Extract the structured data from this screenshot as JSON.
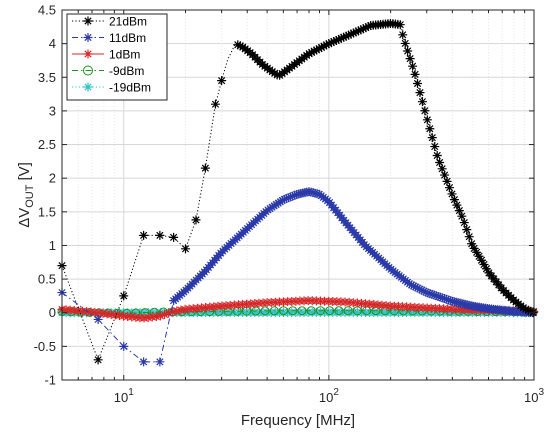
{
  "chart_data": {
    "type": "line",
    "title": "",
    "xlabel": "Frequency [MHz]",
    "ylabel_main": "ΔV",
    "ylabel_sub": "OUT",
    "ylabel_unit": "[V]",
    "xscale": "log",
    "xlim": [
      5,
      1000
    ],
    "ylim": [
      -1,
      4.5
    ],
    "grid": true,
    "legend_position": "top-left",
    "x_ticks": [
      {
        "value": 10,
        "base": "10",
        "exp": "1"
      },
      {
        "value": 100,
        "base": "10",
        "exp": "2"
      },
      {
        "value": 1000,
        "base": "10",
        "exp": "3"
      }
    ],
    "y_ticks": [
      "-1",
      "-0.5",
      "0",
      "0.5",
      "1",
      "1.5",
      "2",
      "2.5",
      "3",
      "3.5",
      "4",
      "4.5"
    ],
    "series": [
      {
        "name": "21dBm",
        "color": "#000000",
        "line_style": "dotted",
        "marker": "asterisk",
        "anchors": [
          [
            5,
            0.7
          ],
          [
            7.5,
            -0.7
          ],
          [
            10,
            0.25
          ],
          [
            12.5,
            1.15
          ],
          [
            15,
            1.15
          ],
          [
            17.5,
            1.12
          ],
          [
            20,
            0.95
          ],
          [
            22.5,
            1.38
          ],
          [
            25,
            2.15
          ],
          [
            28,
            3.1
          ],
          [
            30,
            3.45
          ],
          [
            32,
            3.75
          ],
          [
            35,
            4.0
          ],
          [
            38,
            3.95
          ],
          [
            42,
            3.85
          ],
          [
            47,
            3.7
          ],
          [
            52,
            3.6
          ],
          [
            57,
            3.52
          ],
          [
            62,
            3.6
          ],
          [
            70,
            3.72
          ],
          [
            80,
            3.85
          ],
          [
            100,
            4.0
          ],
          [
            130,
            4.15
          ],
          [
            160,
            4.27
          ],
          [
            200,
            4.3
          ],
          [
            225,
            4.28
          ],
          [
            230,
            4.1
          ],
          [
            260,
            3.6
          ],
          [
            300,
            2.9
          ],
          [
            340,
            2.3
          ],
          [
            400,
            1.75
          ],
          [
            450,
            1.4
          ],
          [
            500,
            1.0
          ],
          [
            550,
            0.8
          ],
          [
            600,
            0.6
          ],
          [
            700,
            0.35
          ],
          [
            800,
            0.18
          ],
          [
            900,
            0.06
          ],
          [
            1000,
            0.0
          ]
        ]
      },
      {
        "name": "11dBm",
        "color": "#2b3aa8",
        "line_style": "dashdot",
        "marker": "asterisk",
        "anchors": [
          [
            5,
            0.3
          ],
          [
            7.5,
            -0.1
          ],
          [
            10,
            -0.5
          ],
          [
            12.5,
            -0.73
          ],
          [
            15,
            -0.73
          ],
          [
            17.5,
            0.18
          ],
          [
            20,
            0.33
          ],
          [
            25,
            0.62
          ],
          [
            30,
            0.9
          ],
          [
            40,
            1.25
          ],
          [
            50,
            1.52
          ],
          [
            60,
            1.68
          ],
          [
            70,
            1.76
          ],
          [
            80,
            1.8
          ],
          [
            90,
            1.76
          ],
          [
            100,
            1.65
          ],
          [
            120,
            1.35
          ],
          [
            150,
            1.0
          ],
          [
            200,
            0.65
          ],
          [
            250,
            0.42
          ],
          [
            300,
            0.3
          ],
          [
            400,
            0.17
          ],
          [
            500,
            0.1
          ],
          [
            600,
            0.06
          ],
          [
            800,
            0.02
          ],
          [
            1000,
            0.0
          ]
        ]
      },
      {
        "name": "1dBm",
        "color": "#d62728",
        "line_style": "solid",
        "marker": "asterisk",
        "anchors": [
          [
            5,
            0.05
          ],
          [
            7.5,
            0.0
          ],
          [
            10,
            -0.05
          ],
          [
            12.5,
            -0.08
          ],
          [
            15,
            -0.05
          ],
          [
            17.5,
            0.02
          ],
          [
            20,
            0.05
          ],
          [
            30,
            0.1
          ],
          [
            50,
            0.15
          ],
          [
            80,
            0.18
          ],
          [
            120,
            0.16
          ],
          [
            200,
            0.1
          ],
          [
            300,
            0.07
          ],
          [
            500,
            0.04
          ],
          [
            1000,
            0.02
          ]
        ]
      },
      {
        "name": "-9dBm",
        "color": "#1f8f1f",
        "line_style": "dashdot",
        "marker": "circle",
        "anchors": [
          [
            5,
            0.02
          ],
          [
            7.5,
            0.0
          ],
          [
            10,
            -0.01
          ],
          [
            15,
            0.01
          ],
          [
            30,
            0.02
          ],
          [
            60,
            0.03
          ],
          [
            100,
            0.03
          ],
          [
            200,
            0.03
          ],
          [
            300,
            0.025
          ],
          [
            500,
            0.02
          ],
          [
            1000,
            0.01
          ]
        ]
      },
      {
        "name": "-19dBm",
        "color": "#2ec4c4",
        "line_style": "dotted",
        "marker": "asterisk",
        "anchors": [
          [
            5,
            0.0
          ],
          [
            10,
            0.0
          ],
          [
            100,
            0.005
          ],
          [
            1000,
            0.0
          ]
        ]
      }
    ]
  }
}
